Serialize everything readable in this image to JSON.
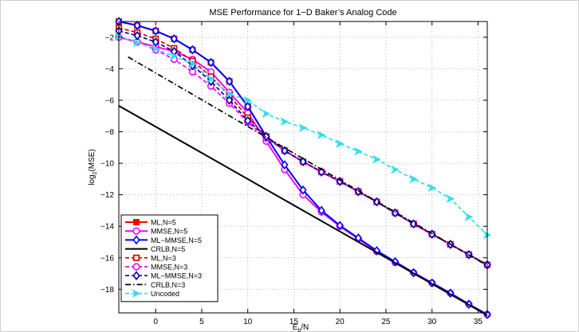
{
  "chart_data": {
    "type": "line",
    "title": "MSE Performance for 1−D Baker’s Analog Code",
    "xlabel": "E",
    "xlabel_sub": "b",
    "xlabel_tail": "/N",
    "ylabel": "log",
    "ylabel_sub": "2",
    "ylabel_tail": "(MSE)",
    "xlim": [
      -4,
      36
    ],
    "ylim": [
      -19.5,
      -1
    ],
    "xticks": [
      0,
      5,
      10,
      15,
      20,
      25,
      30,
      35
    ],
    "xtick_labels": [
      "0",
      "5",
      "10",
      "15",
      "20",
      "25",
      "30",
      "35"
    ],
    "yticks": [
      -2,
      -4,
      -6,
      -8,
      -10,
      -12,
      -14,
      -16,
      -18
    ],
    "ytick_labels": [
      "−2",
      "−4",
      "−6",
      "−8",
      "−10",
      "−12",
      "−14",
      "−16",
      "−18"
    ],
    "grid": true,
    "legend_position": "bottom-left",
    "series": [
      {
        "name": "ML,N=5",
        "color": "#ff0000",
        "dash": "solid",
        "marker": "square",
        "x": [
          -4,
          -2,
          0,
          2,
          4,
          6,
          8,
          10,
          12,
          14,
          16,
          18,
          20,
          22,
          24,
          26,
          28,
          30,
          32,
          34,
          36
        ],
        "y": [
          -1.0,
          -1.25,
          -1.6,
          -2.1,
          -2.8,
          -3.6,
          -4.8,
          -6.4,
          -8.3,
          -9.2,
          -9.9,
          -10.55,
          -11.15,
          -11.8,
          -12.45,
          -13.15,
          -13.85,
          -14.5,
          -15.15,
          -15.8,
          -16.45
        ]
      },
      {
        "name": "MMSE,N=5",
        "color": "#ff00ff",
        "dash": "solid",
        "marker": "circle",
        "x": [
          -4,
          -2,
          0,
          2,
          4,
          6,
          8,
          10,
          12,
          14,
          16,
          18,
          20,
          22,
          24,
          26,
          28,
          30,
          32,
          34,
          36
        ],
        "y": [
          -2.0,
          -2.3,
          -2.6,
          -2.9,
          -3.4,
          -4.2,
          -5.5,
          -6.8,
          -8.6,
          -10.4,
          -12.0,
          -13.1,
          -14.0,
          -14.8,
          -15.6,
          -16.3,
          -16.95,
          -17.6,
          -18.25,
          -18.95,
          -19.6
        ]
      },
      {
        "name": "ML−MMSE,N=5",
        "color": "#0000ff",
        "dash": "solid",
        "marker": "diamond",
        "x": [
          -4,
          -2,
          0,
          2,
          4,
          6,
          8,
          10,
          12,
          14,
          16,
          18,
          20,
          22,
          24,
          26,
          28,
          30,
          32,
          34,
          36
        ],
        "y": [
          -1.0,
          -1.25,
          -1.6,
          -2.1,
          -2.8,
          -3.6,
          -4.8,
          -6.4,
          -8.3,
          -10.1,
          -11.7,
          -13.0,
          -13.95,
          -14.75,
          -15.55,
          -16.25,
          -16.95,
          -17.6,
          -18.25,
          -18.95,
          -19.6
        ]
      },
      {
        "name": "CRLB,N=5",
        "color": "#000000",
        "dash": "solid",
        "marker": "none",
        "x": [
          -4,
          36
        ],
        "y": [
          -6.35,
          -19.65
        ]
      },
      {
        "name": "ML,N=3",
        "color": "#cc0000",
        "dash": "dashed",
        "marker": "square",
        "x": [
          -4,
          -2,
          0,
          2,
          4,
          6,
          8,
          10,
          12,
          14,
          16,
          18,
          20,
          22,
          24,
          26,
          28,
          30,
          32,
          34,
          36
        ],
        "y": [
          -1.4,
          -1.7,
          -2.1,
          -2.7,
          -3.5,
          -4.5,
          -5.7,
          -7.1,
          -8.3,
          -9.2,
          -9.9,
          -10.55,
          -11.15,
          -11.8,
          -12.45,
          -13.15,
          -13.85,
          -14.5,
          -15.15,
          -15.8,
          -16.45
        ]
      },
      {
        "name": "MMSE,N=3",
        "color": "#ff00ff",
        "dash": "dashed",
        "marker": "circle",
        "x": [
          -4,
          -2,
          0,
          2,
          4,
          6,
          8,
          10,
          12,
          14,
          16,
          18,
          20,
          22,
          24,
          26,
          28,
          30,
          32,
          34,
          36
        ],
        "y": [
          -2.0,
          -2.3,
          -2.8,
          -3.4,
          -4.2,
          -5.1,
          -6.2,
          -7.4,
          -8.4,
          -9.2,
          -9.9,
          -10.55,
          -11.15,
          -11.8,
          -12.45,
          -13.15,
          -13.85,
          -14.5,
          -15.15,
          -15.8,
          -16.45
        ]
      },
      {
        "name": "ML−MMSE,N=3",
        "color": "#0000aa",
        "dash": "dashed",
        "marker": "diamond",
        "x": [
          -4,
          -2,
          0,
          2,
          4,
          6,
          8,
          10,
          12,
          14,
          16,
          18,
          20,
          22,
          24,
          26,
          28,
          30,
          32,
          34,
          36
        ],
        "y": [
          -1.6,
          -1.9,
          -2.3,
          -2.9,
          -3.8,
          -4.8,
          -6.0,
          -7.3,
          -8.3,
          -9.2,
          -9.9,
          -10.55,
          -11.15,
          -11.8,
          -12.45,
          -13.15,
          -13.85,
          -14.5,
          -15.15,
          -15.8,
          -16.45
        ]
      },
      {
        "name": "CRLB,N=3",
        "color": "#000000",
        "dash": "dashdot",
        "marker": "none",
        "x": [
          -3,
          36
        ],
        "y": [
          -3.25,
          -16.5
        ]
      },
      {
        "name": "Uncoded",
        "color": "#33ddee",
        "dash": "dashed",
        "marker": "arrow",
        "x": [
          -4,
          -2,
          0,
          2,
          4,
          6,
          8,
          10,
          12,
          14,
          16,
          18,
          20,
          22,
          24,
          26,
          28,
          30,
          32,
          34,
          36
        ],
        "y": [
          -1.95,
          -2.35,
          -2.75,
          -3.2,
          -3.7,
          -4.65,
          -5.6,
          -6.0,
          -6.85,
          -7.35,
          -7.75,
          -8.2,
          -8.75,
          -9.25,
          -9.75,
          -10.4,
          -11.0,
          -11.55,
          -12.25,
          -13.4,
          -14.55
        ]
      }
    ]
  }
}
